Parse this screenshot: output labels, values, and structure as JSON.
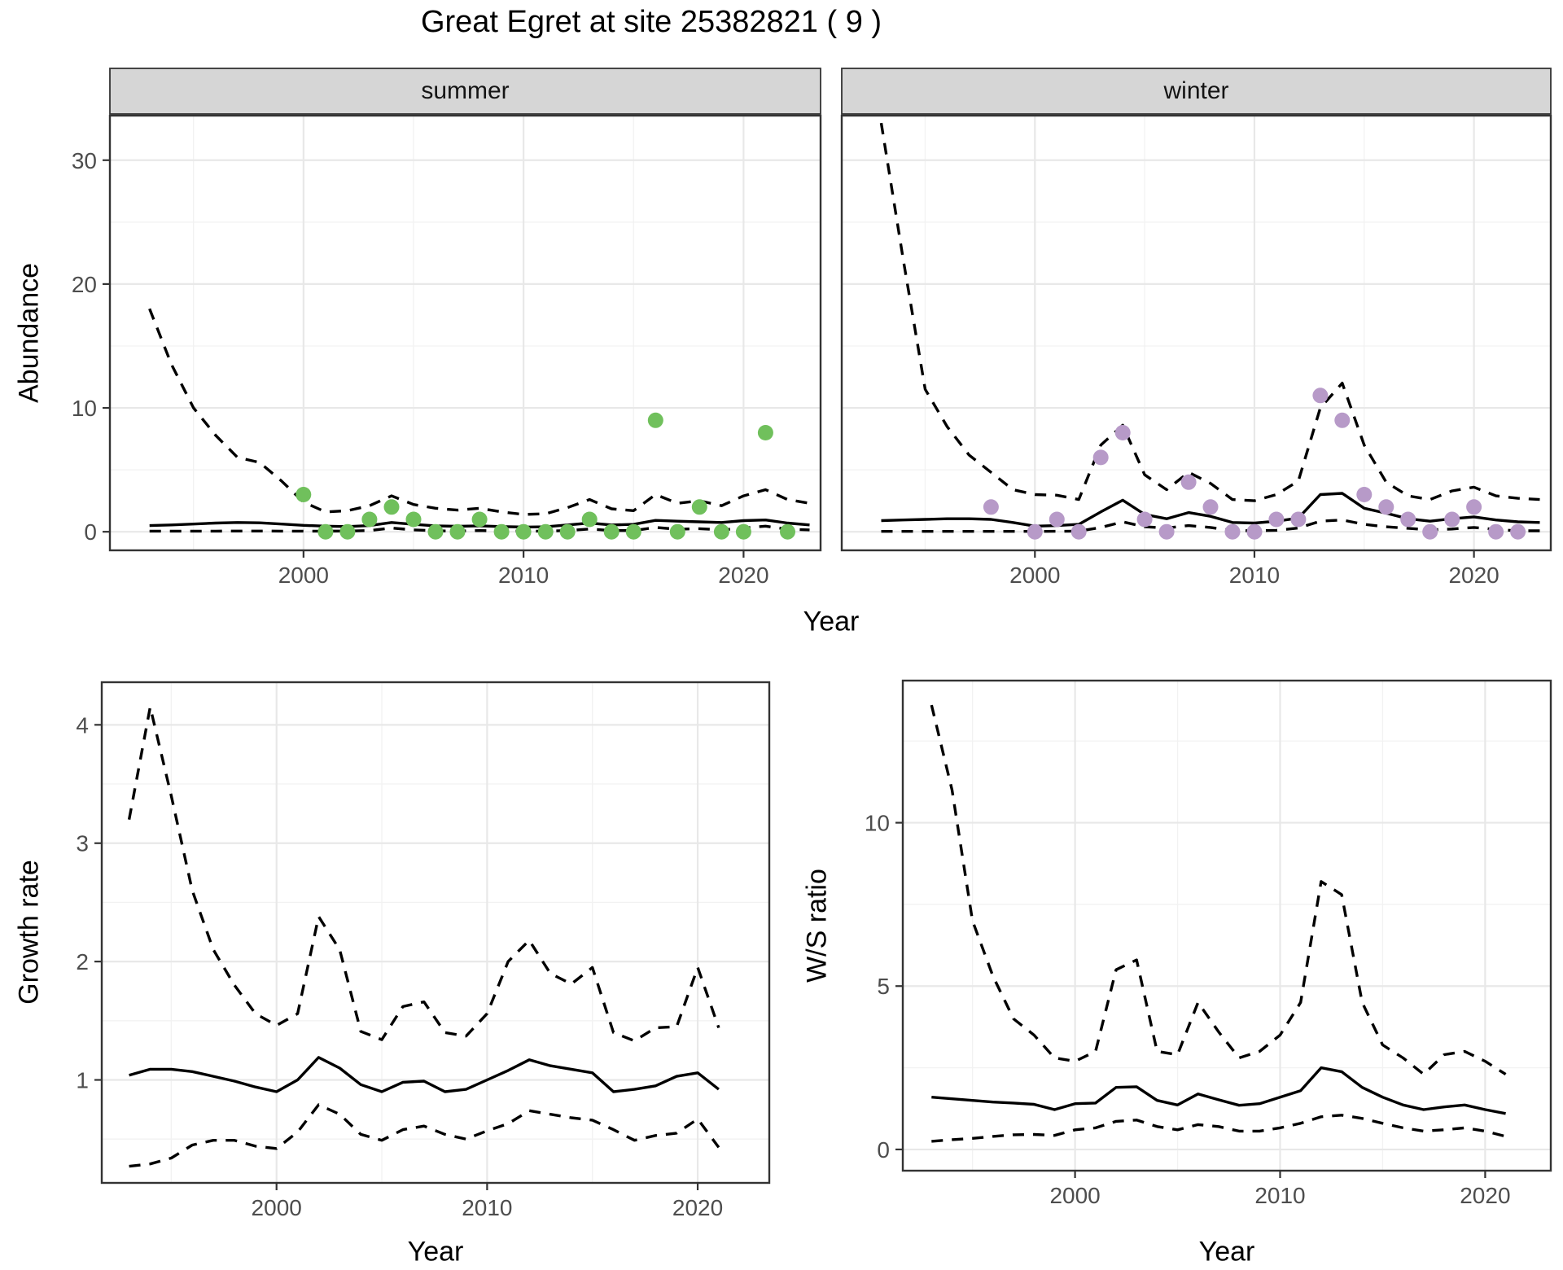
{
  "title": "Great Egret at site 25382821 ( 9 )",
  "colors": {
    "summer_point": "#70c05c",
    "winter_point": "#b79ac8",
    "line": "#000000",
    "strip_background": "#d6d6d6",
    "panel_border": "#333333",
    "grid": "#e8e8e8",
    "tick_text": "#4d4d4d"
  },
  "chart_data": [
    {
      "id": "abundance_summer",
      "type": "line",
      "facet_label": "summer",
      "xlabel": "Year",
      "ylabel": "Abundance",
      "xlim": [
        1991.2,
        2023.5
      ],
      "ylim": [
        -1.5,
        33.6
      ],
      "xticks": [
        2000,
        2010,
        2020
      ],
      "yticks": [
        0,
        10,
        20,
        30
      ],
      "xminor": [
        1995,
        2005,
        2015
      ],
      "yminor": [
        5,
        15,
        25
      ],
      "grid": "on",
      "x": [
        1993,
        1994,
        1995,
        1996,
        1997,
        1998,
        1999,
        2000,
        2001,
        2002,
        2003,
        2004,
        2005,
        2006,
        2007,
        2008,
        2009,
        2010,
        2011,
        2012,
        2013,
        2014,
        2015,
        2016,
        2017,
        2018,
        2019,
        2020,
        2021,
        2022,
        2023
      ],
      "series": [
        {
          "name": "fit",
          "line": "solid",
          "values": [
            0.5,
            0.55,
            0.62,
            0.7,
            0.75,
            0.72,
            0.62,
            0.52,
            0.45,
            0.42,
            0.5,
            0.75,
            0.6,
            0.48,
            0.44,
            0.48,
            0.42,
            0.38,
            0.4,
            0.55,
            0.7,
            0.55,
            0.6,
            0.92,
            0.85,
            0.8,
            0.75,
            0.9,
            0.95,
            0.7,
            0.55
          ]
        },
        {
          "name": "upper_ci",
          "line": "dashed",
          "values": [
            18.0,
            13.5,
            10.0,
            7.8,
            6.0,
            5.6,
            4.1,
            2.4,
            1.6,
            1.7,
            2.1,
            2.9,
            2.2,
            1.9,
            1.75,
            1.9,
            1.6,
            1.4,
            1.45,
            1.95,
            2.6,
            1.85,
            1.7,
            3.0,
            2.3,
            2.5,
            2.1,
            2.9,
            3.4,
            2.6,
            2.3
          ]
        },
        {
          "name": "lower_ci",
          "line": "dashed",
          "values": [
            0.05,
            0.05,
            0.05,
            0.05,
            0.06,
            0.06,
            0.05,
            0.05,
            0.05,
            0.06,
            0.1,
            0.3,
            0.15,
            0.08,
            0.06,
            0.1,
            0.06,
            0.05,
            0.05,
            0.1,
            0.22,
            0.1,
            0.1,
            0.35,
            0.2,
            0.25,
            0.15,
            0.3,
            0.45,
            0.2,
            0.15
          ]
        }
      ],
      "points": {
        "color": "#70c05c",
        "x": [
          2000,
          2001,
          2002,
          2003,
          2004,
          2005,
          2006,
          2007,
          2008,
          2009,
          2010,
          2011,
          2012,
          2013,
          2014,
          2015,
          2016,
          2017,
          2018,
          2019,
          2020,
          2021,
          2022
        ],
        "y": [
          3,
          0,
          0,
          1,
          2,
          1,
          0,
          0,
          1,
          0,
          0,
          0,
          0,
          1,
          0,
          0,
          9,
          0,
          2,
          0,
          0,
          8,
          0
        ]
      }
    },
    {
      "id": "abundance_winter",
      "type": "line",
      "facet_label": "winter",
      "xlabel": "Year",
      "ylabel": "Abundance",
      "xlim": [
        1991.2,
        2023.5
      ],
      "ylim": [
        -1.5,
        33.6
      ],
      "xticks": [
        2000,
        2010,
        2020
      ],
      "yticks": [
        0,
        10,
        20,
        30
      ],
      "xminor": [
        1995,
        2005,
        2015
      ],
      "yminor": [
        5,
        15,
        25
      ],
      "grid": "on",
      "x": [
        1993,
        1994,
        1995,
        1996,
        1997,
        1998,
        1999,
        2000,
        2001,
        2002,
        2003,
        2004,
        2005,
        2006,
        2007,
        2008,
        2009,
        2010,
        2011,
        2012,
        2013,
        2014,
        2015,
        2016,
        2017,
        2018,
        2019,
        2020,
        2021,
        2022,
        2023
      ],
      "series": [
        {
          "name": "fit",
          "line": "solid",
          "values": [
            0.9,
            0.95,
            1.0,
            1.05,
            1.05,
            1.0,
            0.75,
            0.45,
            0.5,
            0.6,
            1.6,
            2.55,
            1.4,
            1.05,
            1.55,
            1.25,
            0.75,
            0.7,
            0.85,
            1.1,
            3.0,
            3.1,
            1.9,
            1.5,
            1.05,
            0.85,
            1.05,
            1.2,
            0.95,
            0.8,
            0.75
          ]
        },
        {
          "name": "upper_ci",
          "line": "dashed",
          "values": [
            33.0,
            22.0,
            11.5,
            8.5,
            6.2,
            4.8,
            3.4,
            3.0,
            2.95,
            2.6,
            7.0,
            8.6,
            4.6,
            3.4,
            4.8,
            3.9,
            2.6,
            2.5,
            3.0,
            4.1,
            10.0,
            12.0,
            7.0,
            4.0,
            2.9,
            2.6,
            3.3,
            3.6,
            2.9,
            2.7,
            2.6
          ]
        },
        {
          "name": "lower_ci",
          "line": "dashed",
          "values": [
            0.03,
            0.03,
            0.03,
            0.03,
            0.03,
            0.03,
            0.03,
            0.03,
            0.04,
            0.05,
            0.35,
            0.8,
            0.4,
            0.3,
            0.5,
            0.35,
            0.1,
            0.08,
            0.12,
            0.3,
            0.85,
            0.95,
            0.6,
            0.4,
            0.28,
            0.15,
            0.22,
            0.35,
            0.18,
            0.08,
            0.08
          ]
        }
      ],
      "points": {
        "color": "#b79ac8",
        "x": [
          1998,
          2000,
          2001,
          2002,
          2003,
          2004,
          2005,
          2006,
          2007,
          2008,
          2009,
          2010,
          2011,
          2012,
          2013,
          2014,
          2015,
          2016,
          2017,
          2018,
          2019,
          2020,
          2021,
          2022
        ],
        "y": [
          2,
          0,
          1,
          0,
          6,
          8,
          1,
          0,
          4,
          2,
          0,
          0,
          1,
          1,
          11,
          9,
          3,
          2,
          1,
          0,
          1,
          2,
          0,
          0
        ]
      }
    },
    {
      "id": "growth_rate",
      "type": "line",
      "facet_label": "",
      "xlabel": "Year",
      "ylabel": "Growth rate",
      "xlim": [
        1991.7,
        2023.4
      ],
      "ylim": [
        0.13,
        4.36
      ],
      "xticks": [
        2000,
        2010,
        2020
      ],
      "yticks": [
        1,
        2,
        3,
        4
      ],
      "xminor": [
        1995,
        2005,
        2015
      ],
      "yminor": [
        0.5,
        1.5,
        2.5,
        3.5
      ],
      "grid": "on",
      "x": [
        1993,
        1994,
        1995,
        1996,
        1997,
        1998,
        1999,
        2000,
        2001,
        2002,
        2003,
        2004,
        2005,
        2006,
        2007,
        2008,
        2009,
        2010,
        2011,
        2012,
        2013,
        2014,
        2015,
        2016,
        2017,
        2018,
        2019,
        2020,
        2021
      ],
      "series": [
        {
          "name": "fit",
          "line": "solid",
          "values": [
            1.04,
            1.09,
            1.09,
            1.07,
            1.03,
            0.99,
            0.94,
            0.9,
            1.0,
            1.19,
            1.1,
            0.96,
            0.9,
            0.98,
            0.99,
            0.9,
            0.92,
            1.0,
            1.08,
            1.17,
            1.12,
            1.09,
            1.06,
            0.9,
            0.92,
            0.95,
            1.03,
            1.06,
            0.92
          ]
        },
        {
          "name": "upper_ci",
          "line": "dashed",
          "values": [
            3.2,
            4.15,
            3.4,
            2.6,
            2.1,
            1.8,
            1.56,
            1.46,
            1.56,
            2.38,
            2.1,
            1.41,
            1.34,
            1.62,
            1.66,
            1.4,
            1.37,
            1.56,
            2.0,
            2.18,
            1.9,
            1.81,
            1.95,
            1.4,
            1.33,
            1.44,
            1.45,
            1.95,
            1.44
          ]
        },
        {
          "name": "lower_ci",
          "line": "dashed",
          "values": [
            0.27,
            0.29,
            0.34,
            0.45,
            0.49,
            0.49,
            0.44,
            0.42,
            0.56,
            0.79,
            0.71,
            0.54,
            0.49,
            0.58,
            0.61,
            0.54,
            0.5,
            0.57,
            0.63,
            0.74,
            0.71,
            0.68,
            0.66,
            0.58,
            0.49,
            0.53,
            0.55,
            0.67,
            0.43
          ]
        }
      ]
    },
    {
      "id": "ws_ratio",
      "type": "line",
      "facet_label": "",
      "xlabel": "Year",
      "ylabel": "W/S ratio",
      "xlim": [
        1991.6,
        2023.2
      ],
      "ylim": [
        -0.65,
        14.35
      ],
      "xticks": [
        2000,
        2010,
        2020
      ],
      "yticks": [
        0,
        5,
        10
      ],
      "xminor": [
        1995,
        2005,
        2015
      ],
      "yminor": [
        2.5,
        7.5,
        12.5
      ],
      "grid": "on",
      "x": [
        1993,
        1994,
        1995,
        1996,
        1997,
        1998,
        1999,
        2000,
        2001,
        2002,
        2003,
        2004,
        2005,
        2006,
        2007,
        2008,
        2009,
        2010,
        2011,
        2012,
        2013,
        2014,
        2015,
        2016,
        2017,
        2018,
        2019,
        2020,
        2021
      ],
      "series": [
        {
          "name": "fit",
          "line": "solid",
          "values": [
            1.6,
            1.55,
            1.5,
            1.45,
            1.42,
            1.38,
            1.22,
            1.4,
            1.42,
            1.9,
            1.92,
            1.5,
            1.36,
            1.7,
            1.52,
            1.35,
            1.4,
            1.6,
            1.8,
            2.5,
            2.38,
            1.9,
            1.6,
            1.36,
            1.22,
            1.3,
            1.36,
            1.22,
            1.1
          ]
        },
        {
          "name": "upper_ci",
          "line": "dashed",
          "values": [
            13.6,
            11.0,
            7.0,
            5.3,
            4.0,
            3.5,
            2.8,
            2.7,
            3.0,
            5.5,
            5.8,
            3.0,
            2.9,
            4.5,
            3.6,
            2.8,
            3.0,
            3.5,
            4.5,
            8.2,
            7.8,
            4.5,
            3.2,
            2.8,
            2.3,
            2.9,
            3.0,
            2.7,
            2.3
          ]
        },
        {
          "name": "lower_ci",
          "line": "dashed",
          "values": [
            0.25,
            0.3,
            0.34,
            0.4,
            0.45,
            0.46,
            0.43,
            0.6,
            0.66,
            0.86,
            0.9,
            0.7,
            0.6,
            0.76,
            0.7,
            0.56,
            0.56,
            0.66,
            0.8,
            1.0,
            1.05,
            0.95,
            0.8,
            0.66,
            0.56,
            0.6,
            0.66,
            0.56,
            0.4
          ]
        }
      ]
    }
  ]
}
